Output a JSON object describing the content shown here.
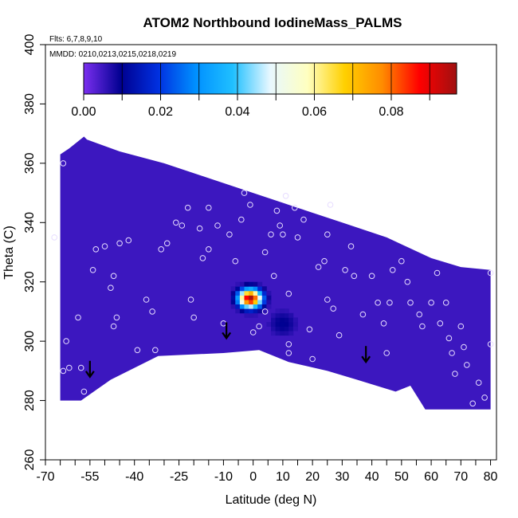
{
  "chart_data": {
    "type": "heatmap",
    "title": "ATOM2 Northbound IodineMass_PALMS",
    "notes": [
      "Flts: 6,7,8,9,10",
      "MMDD: 0210,0213,0215,0218,0219"
    ],
    "xlabel": "Latitude (deg N)",
    "ylabel": "Theta (C)",
    "xlim": [
      -70,
      82
    ],
    "ylim": [
      260,
      400
    ],
    "x_ticks": [
      -70,
      -55,
      -40,
      -25,
      -10,
      0,
      10,
      20,
      30,
      40,
      50,
      60,
      70,
      80
    ],
    "x_tick_labels": [
      "-70",
      "-55",
      "-40",
      "-25",
      "-10",
      "0",
      "10",
      "20",
      "30",
      "40",
      "50",
      "60",
      "70",
      "80"
    ],
    "x_minor_ticks": [
      -65,
      -60,
      -50,
      -45,
      -35,
      -30,
      -20,
      -15,
      -5,
      5,
      15,
      25,
      35,
      45,
      55,
      65,
      75
    ],
    "y_ticks": [
      260,
      280,
      300,
      320,
      340,
      360,
      380,
      400
    ],
    "y_tick_labels": [
      "260",
      "280",
      "300",
      "320",
      "340",
      "360",
      "380",
      "400"
    ],
    "colorbar": {
      "range": [
        0,
        0.097
      ],
      "ticks": [
        0,
        0.02,
        0.04,
        0.06,
        0.08
      ],
      "tick_labels": [
        "0.00",
        "0.02",
        "0.04",
        "0.06",
        "0.08"
      ],
      "minor_ticks": [
        0.01,
        0.03,
        0.05,
        0.07,
        0.09
      ],
      "colors": [
        "#7b2ff0",
        "#000090",
        "#0030e0",
        "#0090ff",
        "#20c0ff",
        "#e8f8ff",
        "#ffffc0",
        "#ffd000",
        "#ff8c00",
        "#ff0000",
        "#a01010"
      ]
    },
    "field": {
      "background_value": 0.005,
      "outline": [
        [
          -65,
          280
        ],
        [
          -65,
          363
        ],
        [
          -62,
          365
        ],
        [
          -57,
          369
        ],
        [
          -56,
          368
        ],
        [
          -45,
          364
        ],
        [
          -30,
          360
        ],
        [
          -15,
          355
        ],
        [
          0,
          350
        ],
        [
          15,
          345
        ],
        [
          30,
          340
        ],
        [
          45,
          335
        ],
        [
          60,
          328
        ],
        [
          70,
          325
        ],
        [
          80,
          324
        ],
        [
          80,
          277
        ],
        [
          75,
          277
        ],
        [
          58,
          277
        ],
        [
          53,
          285
        ],
        [
          48,
          283
        ],
        [
          35,
          287
        ],
        [
          25,
          290
        ],
        [
          12,
          293
        ],
        [
          2,
          297
        ],
        [
          -10,
          296
        ],
        [
          -32,
          295
        ],
        [
          -48,
          287
        ],
        [
          -58,
          280
        ],
        [
          -65,
          280
        ]
      ],
      "features": [
        {
          "lat": -1,
          "theta": 314.5,
          "peak": 0.097
        },
        {
          "lat": 10,
          "theta": 306,
          "peak": 0.01
        }
      ]
    },
    "samples": [
      [
        -67,
        335
      ],
      [
        -64,
        360
      ],
      [
        -63,
        300
      ],
      [
        -64,
        290
      ],
      [
        -62,
        291
      ],
      [
        -58,
        291
      ],
      [
        -57,
        283
      ],
      [
        -59,
        308
      ],
      [
        -54,
        324
      ],
      [
        -53,
        331
      ],
      [
        -50,
        332
      ],
      [
        -48,
        318
      ],
      [
        -47,
        322
      ],
      [
        -46,
        308
      ],
      [
        -47,
        305
      ],
      [
        -45,
        333
      ],
      [
        -42,
        334
      ],
      [
        -39,
        297
      ],
      [
        -36,
        314
      ],
      [
        -34,
        310
      ],
      [
        -33,
        297
      ],
      [
        -31,
        331
      ],
      [
        -29,
        333
      ],
      [
        -26,
        340
      ],
      [
        -24,
        339
      ],
      [
        -22,
        345
      ],
      [
        -21,
        314
      ],
      [
        -20,
        308
      ],
      [
        -18,
        338
      ],
      [
        -17,
        328
      ],
      [
        -15,
        331
      ],
      [
        -15,
        345
      ],
      [
        -12,
        339
      ],
      [
        -10,
        306
      ],
      [
        -8,
        336
      ],
      [
        -6,
        327
      ],
      [
        -4,
        341
      ],
      [
        -3,
        350
      ],
      [
        -1,
        346
      ],
      [
        0,
        303
      ],
      [
        2,
        305
      ],
      [
        4,
        330
      ],
      [
        4,
        310
      ],
      [
        6,
        336
      ],
      [
        7,
        322
      ],
      [
        8,
        344
      ],
      [
        9,
        339
      ],
      [
        10,
        336
      ],
      [
        11,
        349
      ],
      [
        12,
        316
      ],
      [
        12,
        299
      ],
      [
        12,
        296
      ],
      [
        14,
        345
      ],
      [
        15,
        335
      ],
      [
        17,
        341
      ],
      [
        19,
        304
      ],
      [
        20,
        294
      ],
      [
        22,
        325
      ],
      [
        24,
        327
      ],
      [
        25,
        336
      ],
      [
        25,
        314
      ],
      [
        26,
        346
      ],
      [
        27,
        311
      ],
      [
        29,
        302
      ],
      [
        31,
        324
      ],
      [
        33,
        332
      ],
      [
        34,
        322
      ],
      [
        37,
        309
      ],
      [
        40,
        322
      ],
      [
        42,
        313
      ],
      [
        44,
        306
      ],
      [
        45,
        296
      ],
      [
        46,
        313
      ],
      [
        47,
        324
      ],
      [
        50,
        327
      ],
      [
        52,
        320
      ],
      [
        53,
        313
      ],
      [
        56,
        309
      ],
      [
        57,
        305
      ],
      [
        60,
        313
      ],
      [
        62,
        323
      ],
      [
        63,
        306
      ],
      [
        65,
        313
      ],
      [
        66,
        301
      ],
      [
        67,
        296
      ],
      [
        68,
        289
      ],
      [
        70,
        305
      ],
      [
        71,
        298
      ],
      [
        72,
        292
      ],
      [
        74,
        279
      ],
      [
        76,
        286
      ],
      [
        78,
        281
      ],
      [
        80,
        299
      ],
      [
        80,
        323
      ]
    ],
    "arrows": [
      {
        "lat": -55,
        "theta": 288
      },
      {
        "lat": -9,
        "theta": 301
      },
      {
        "lat": 38,
        "theta": 293
      }
    ]
  }
}
